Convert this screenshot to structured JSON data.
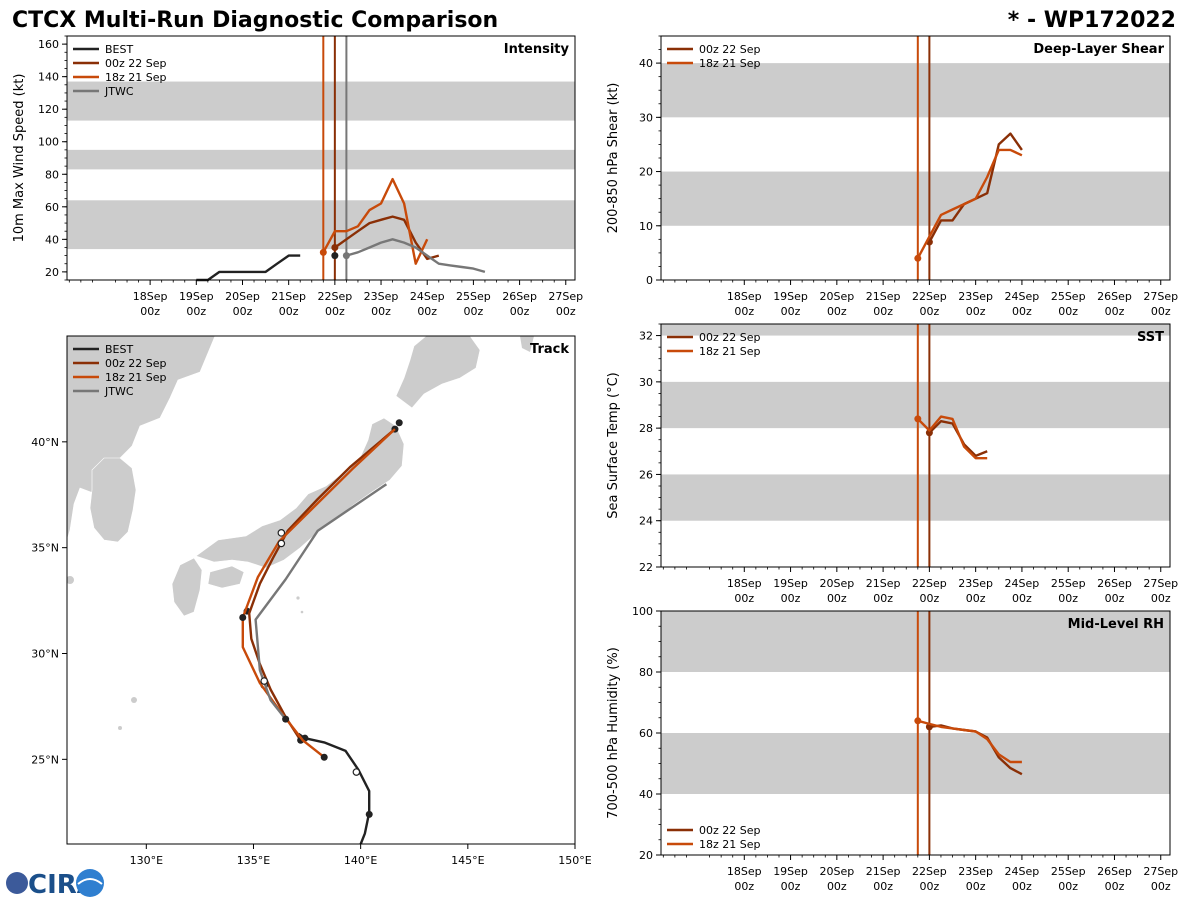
{
  "header": {
    "title": "CTCX Multi-Run Diagnostic Comparison",
    "storm_id": "* - WP172022"
  },
  "logo": {
    "text": "CIRA"
  },
  "colors": {
    "best": "#222222",
    "run_00z": "#8a2f06",
    "run_18z": "#c84a0a",
    "jtwc": "#777777",
    "band": "#cccccc",
    "land": "#cccccc"
  },
  "chart_data": [
    {
      "id": "intensity",
      "type": "line",
      "title": "Intensity",
      "xlabel": "",
      "ylabel": "10m Max Wind Speed (kt)",
      "xlim": [
        -0.8,
        10.2
      ],
      "ylim": [
        15,
        165
      ],
      "x_ticks": [
        1,
        2,
        3,
        4,
        5,
        6,
        7,
        8,
        9,
        10
      ],
      "x_tick_labels": [
        [
          "18Sep",
          "00z"
        ],
        [
          "19Sep",
          "00z"
        ],
        [
          "20Sep",
          "00z"
        ],
        [
          "21Sep",
          "00z"
        ],
        [
          "22Sep",
          "00z"
        ],
        [
          "23Sep",
          "00z"
        ],
        [
          "24Sep",
          "00z"
        ],
        [
          "25Sep",
          "00z"
        ],
        [
          "26Sep",
          "00z"
        ],
        [
          "27Sep",
          "00z"
        ]
      ],
      "y_ticks": [
        20,
        40,
        60,
        80,
        100,
        120,
        140,
        160
      ],
      "bands": [
        [
          34,
          64
        ],
        [
          83,
          95
        ],
        [
          113,
          137
        ]
      ],
      "vlines": [
        {
          "x": 4.75,
          "series": "18z 21 Sep"
        },
        {
          "x": 5.0,
          "series": "00z 22 Sep"
        },
        {
          "x": 5.25,
          "series": "JTWC"
        }
      ],
      "legend": [
        "BEST",
        "00z 22 Sep",
        "18z 21 Sep",
        "JTWC"
      ],
      "legend_position": "top-left",
      "series": [
        {
          "name": "BEST",
          "points": [
            [
              2.0,
              15
            ],
            [
              2.25,
              15
            ],
            [
              2.5,
              20
            ],
            [
              2.75,
              20
            ],
            [
              3.0,
              20
            ],
            [
              3.25,
              20
            ],
            [
              3.5,
              20
            ],
            [
              3.75,
              25
            ],
            [
              4.0,
              30
            ],
            [
              4.25,
              30
            ]
          ],
          "markers": [
            [
              5.0,
              30
            ]
          ]
        },
        {
          "name": "00z 22 Sep",
          "points": [
            [
              5.0,
              35
            ],
            [
              5.25,
              40
            ],
            [
              5.5,
              45
            ],
            [
              5.75,
              50
            ],
            [
              6.0,
              52
            ],
            [
              6.25,
              54
            ],
            [
              6.5,
              52
            ],
            [
              6.75,
              38
            ],
            [
              7.0,
              28
            ],
            [
              7.25,
              30
            ]
          ],
          "markers": [
            [
              5.0,
              35
            ]
          ]
        },
        {
          "name": "18z 21 Sep",
          "points": [
            [
              4.75,
              32
            ],
            [
              5.0,
              45
            ],
            [
              5.25,
              45
            ],
            [
              5.5,
              48
            ],
            [
              5.75,
              58
            ],
            [
              6.0,
              62
            ],
            [
              6.25,
              77
            ],
            [
              6.5,
              62
            ],
            [
              6.75,
              25
            ],
            [
              7.0,
              40
            ]
          ],
          "markers": [
            [
              4.75,
              32
            ]
          ]
        },
        {
          "name": "JTWC",
          "points": [
            [
              5.25,
              30
            ],
            [
              5.5,
              32
            ],
            [
              5.75,
              35
            ],
            [
              6.0,
              38
            ],
            [
              6.25,
              40
            ],
            [
              6.5,
              38
            ],
            [
              6.75,
              35
            ],
            [
              7.0,
              30
            ],
            [
              7.25,
              25
            ],
            [
              7.5,
              24
            ],
            [
              7.75,
              23
            ],
            [
              8.0,
              22
            ],
            [
              8.25,
              20
            ]
          ],
          "markers": [
            [
              5.25,
              30
            ]
          ]
        }
      ]
    },
    {
      "id": "shear",
      "type": "line",
      "title": "Deep-Layer Shear",
      "xlabel": "",
      "ylabel": "200-850 hPa Shear (kt)",
      "xlim": [
        -0.8,
        10.2
      ],
      "ylim": [
        0,
        45
      ],
      "x_ticks": [
        1,
        2,
        3,
        4,
        5,
        6,
        7,
        8,
        9,
        10
      ],
      "x_tick_labels": [
        [
          "18Sep",
          "00z"
        ],
        [
          "19Sep",
          "00z"
        ],
        [
          "20Sep",
          "00z"
        ],
        [
          "21Sep",
          "00z"
        ],
        [
          "22Sep",
          "00z"
        ],
        [
          "23Sep",
          "00z"
        ],
        [
          "24Sep",
          "00z"
        ],
        [
          "25Sep",
          "00z"
        ],
        [
          "26Sep",
          "00z"
        ],
        [
          "27Sep",
          "00z"
        ]
      ],
      "y_ticks": [
        0,
        10,
        20,
        30,
        40
      ],
      "bands": [
        [
          10,
          20
        ],
        [
          30,
          40
        ]
      ],
      "vlines": [
        {
          "x": 4.75,
          "series": "18z 21 Sep"
        },
        {
          "x": 5.0,
          "series": "00z 22 Sep"
        }
      ],
      "legend": [
        "00z 22 Sep",
        "18z 21 Sep"
      ],
      "legend_position": "top-left",
      "series": [
        {
          "name": "00z 22 Sep",
          "points": [
            [
              5.0,
              7
            ],
            [
              5.25,
              11
            ],
            [
              5.5,
              11
            ],
            [
              5.75,
              14
            ],
            [
              6.0,
              15
            ],
            [
              6.25,
              16
            ],
            [
              6.5,
              25
            ],
            [
              6.75,
              27
            ],
            [
              7.0,
              24
            ]
          ],
          "markers": [
            [
              5.0,
              7
            ]
          ]
        },
        {
          "name": "18z 21 Sep",
          "points": [
            [
              4.75,
              4
            ],
            [
              5.0,
              8
            ],
            [
              5.25,
              12
            ],
            [
              5.5,
              13
            ],
            [
              5.75,
              14
            ],
            [
              6.0,
              15
            ],
            [
              6.25,
              19
            ],
            [
              6.5,
              24
            ],
            [
              6.75,
              24
            ],
            [
              7.0,
              23
            ]
          ],
          "markers": [
            [
              4.75,
              4
            ]
          ]
        }
      ]
    },
    {
      "id": "sst",
      "type": "line",
      "title": "SST",
      "xlabel": "",
      "ylabel": "Sea Surface Temp (°C)",
      "xlim": [
        -0.8,
        10.2
      ],
      "ylim": [
        22,
        32.5
      ],
      "x_ticks": [
        1,
        2,
        3,
        4,
        5,
        6,
        7,
        8,
        9,
        10
      ],
      "x_tick_labels": [
        [
          "18Sep",
          "00z"
        ],
        [
          "19Sep",
          "00z"
        ],
        [
          "20Sep",
          "00z"
        ],
        [
          "21Sep",
          "00z"
        ],
        [
          "22Sep",
          "00z"
        ],
        [
          "23Sep",
          "00z"
        ],
        [
          "24Sep",
          "00z"
        ],
        [
          "25Sep",
          "00z"
        ],
        [
          "26Sep",
          "00z"
        ],
        [
          "27Sep",
          "00z"
        ]
      ],
      "y_ticks": [
        22,
        24,
        26,
        28,
        30,
        32
      ],
      "bands": [
        [
          24,
          26
        ],
        [
          28,
          30
        ],
        [
          32,
          32.5
        ]
      ],
      "vlines": [
        {
          "x": 4.75,
          "series": "18z 21 Sep"
        },
        {
          "x": 5.0,
          "series": "00z 22 Sep"
        }
      ],
      "legend": [
        "00z 22 Sep",
        "18z 21 Sep"
      ],
      "legend_position": "top-left",
      "series": [
        {
          "name": "00z 22 Sep",
          "points": [
            [
              5.0,
              27.8
            ],
            [
              5.25,
              28.3
            ],
            [
              5.5,
              28.2
            ],
            [
              5.75,
              27.3
            ],
            [
              6.0,
              26.8
            ],
            [
              6.25,
              27.0
            ]
          ],
          "markers": [
            [
              5.0,
              27.8
            ]
          ]
        },
        {
          "name": "18z 21 Sep",
          "points": [
            [
              4.75,
              28.4
            ],
            [
              5.0,
              27.9
            ],
            [
              5.25,
              28.5
            ],
            [
              5.5,
              28.4
            ],
            [
              5.75,
              27.2
            ],
            [
              6.0,
              26.7
            ],
            [
              6.25,
              26.7
            ]
          ],
          "markers": [
            [
              4.75,
              28.4
            ]
          ]
        }
      ]
    },
    {
      "id": "rh",
      "type": "line",
      "title": "Mid-Level RH",
      "xlabel": "",
      "ylabel": "700-500 hPa Humidity (%)",
      "xlim": [
        -0.8,
        10.2
      ],
      "ylim": [
        20,
        100
      ],
      "x_ticks": [
        1,
        2,
        3,
        4,
        5,
        6,
        7,
        8,
        9,
        10
      ],
      "x_tick_labels": [
        [
          "18Sep",
          "00z"
        ],
        [
          "19Sep",
          "00z"
        ],
        [
          "20Sep",
          "00z"
        ],
        [
          "21Sep",
          "00z"
        ],
        [
          "22Sep",
          "00z"
        ],
        [
          "23Sep",
          "00z"
        ],
        [
          "24Sep",
          "00z"
        ],
        [
          "25Sep",
          "00z"
        ],
        [
          "26Sep",
          "00z"
        ],
        [
          "27Sep",
          "00z"
        ]
      ],
      "y_ticks": [
        20,
        40,
        60,
        80,
        100
      ],
      "bands": [
        [
          40,
          60
        ],
        [
          80,
          100
        ]
      ],
      "vlines": [
        {
          "x": 4.75,
          "series": "18z 21 Sep"
        },
        {
          "x": 5.0,
          "series": "00z 22 Sep"
        }
      ],
      "legend": [
        "00z 22 Sep",
        "18z 21 Sep"
      ],
      "legend_position": "bottom-left",
      "series": [
        {
          "name": "00z 22 Sep",
          "points": [
            [
              5.0,
              62
            ],
            [
              5.25,
              62.5
            ],
            [
              5.5,
              61.5
            ],
            [
              5.75,
              61
            ],
            [
              6.0,
              60.5
            ],
            [
              6.25,
              58.5
            ],
            [
              6.5,
              52
            ],
            [
              6.75,
              48.5
            ],
            [
              7.0,
              46.5
            ]
          ],
          "markers": [
            [
              5.0,
              62
            ]
          ]
        },
        {
          "name": "18z 21 Sep",
          "points": [
            [
              4.75,
              64
            ],
            [
              5.0,
              63
            ],
            [
              5.25,
              62
            ],
            [
              5.5,
              61.5
            ],
            [
              5.75,
              61
            ],
            [
              6.0,
              60.5
            ],
            [
              6.25,
              58
            ],
            [
              6.5,
              53
            ],
            [
              6.75,
              50.5
            ],
            [
              7.0,
              50.5
            ]
          ],
          "markers": [
            [
              4.75,
              64
            ]
          ]
        }
      ]
    },
    {
      "id": "track",
      "type": "scatter",
      "title": "Track",
      "xlabel": "",
      "ylabel": "",
      "xlim": [
        126.3,
        150.0
      ],
      "ylim": [
        21.0,
        45.0
      ],
      "x_ticks": [
        130,
        135,
        140,
        145,
        150
      ],
      "x_tick_labels": [
        "130°E",
        "135°E",
        "140°E",
        "145°E",
        "150°E"
      ],
      "y_ticks": [
        25,
        30,
        35,
        40
      ],
      "y_tick_labels": [
        "25°N",
        "30°N",
        "35°N",
        "40°N"
      ],
      "legend": [
        "BEST",
        "00z 22 Sep",
        "18z 21 Sep",
        "JTWC"
      ],
      "legend_position": "top-left",
      "series": [
        {
          "name": "BEST",
          "points": [
            [
              140.0,
              21.0
            ],
            [
              140.2,
              21.5
            ],
            [
              140.3,
              22.0
            ],
            [
              140.4,
              22.5
            ],
            [
              140.4,
              23.5
            ],
            [
              139.9,
              24.5
            ],
            [
              139.3,
              25.4
            ],
            [
              138.3,
              25.8
            ],
            [
              137.4,
              26.0
            ],
            [
              137.1,
              26.2
            ]
          ],
          "markers_filled": [
            [
              140.4,
              22.4
            ],
            [
              137.4,
              26.0
            ],
            [
              134.7,
              32.0
            ],
            [
              141.8,
              40.9
            ]
          ],
          "markers_open": [
            [
              139.8,
              24.4
            ]
          ]
        },
        {
          "name": "00z 22 Sep",
          "points": [
            [
              137.2,
              25.9
            ],
            [
              136.5,
              27.0
            ],
            [
              135.8,
              28.3
            ],
            [
              135.3,
              29.5
            ],
            [
              134.9,
              30.7
            ],
            [
              134.8,
              31.9
            ],
            [
              135.3,
              33.3
            ],
            [
              135.9,
              34.5
            ],
            [
              136.6,
              35.8
            ],
            [
              138.0,
              37.3
            ],
            [
              139.5,
              38.8
            ],
            [
              141.6,
              40.6
            ]
          ],
          "markers_filled": [
            [
              137.2,
              25.9
            ],
            [
              141.6,
              40.6
            ]
          ],
          "markers_open": [
            [
              135.5,
              28.5
            ],
            [
              136.3,
              35.7
            ]
          ]
        },
        {
          "name": "18z 21 Sep",
          "points": [
            [
              138.3,
              25.1
            ],
            [
              137.3,
              25.9
            ],
            [
              136.3,
              27.2
            ],
            [
              135.3,
              28.6
            ],
            [
              134.5,
              30.3
            ],
            [
              134.5,
              31.7
            ],
            [
              135.2,
              33.6
            ],
            [
              136.2,
              35.3
            ],
            [
              137.8,
              36.9
            ],
            [
              139.6,
              38.7
            ],
            [
              141.6,
              40.6
            ]
          ],
          "markers_filled": [
            [
              138.3,
              25.1
            ],
            [
              134.5,
              31.7
            ]
          ],
          "markers_open": [
            [
              136.3,
              35.2
            ]
          ]
        },
        {
          "name": "JTWC",
          "points": [
            [
              136.5,
              26.9
            ],
            [
              135.8,
              27.8
            ],
            [
              135.3,
              29.2
            ],
            [
              135.1,
              31.6
            ],
            [
              136.5,
              33.5
            ],
            [
              138.0,
              35.8
            ],
            [
              141.2,
              38.0
            ]
          ],
          "markers_filled": [
            [
              136.5,
              26.9
            ]
          ],
          "markers_open": [
            [
              135.5,
              28.7
            ]
          ]
        }
      ]
    }
  ]
}
